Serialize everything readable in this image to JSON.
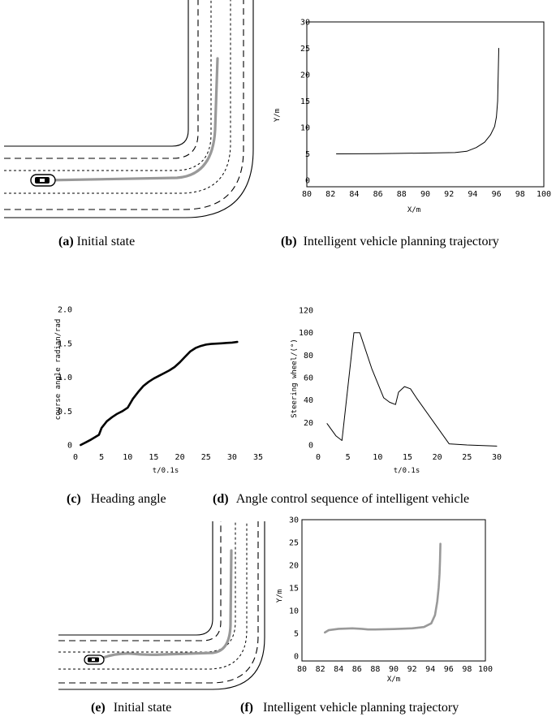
{
  "captions": {
    "a": {
      "letter": "(a)",
      "text": "Initial state"
    },
    "b": {
      "letter": "(b)",
      "text": "Intelligent vehicle planning trajectory"
    },
    "c": {
      "letter": "(c)",
      "text": "Heading angle"
    },
    "d": {
      "letter": "(d)",
      "text": "Angle control sequence of intelligent vehicle"
    },
    "e": {
      "letter": "(e)",
      "text": "Initial state"
    },
    "f": {
      "letter": "(f)",
      "text": "Intelligent vehicle planning trajectory"
    }
  },
  "chart_data": [
    {
      "id": "b",
      "type": "line",
      "title": "",
      "xlabel": "X/m",
      "ylabel": "Y/m",
      "xlim": [
        80,
        100
      ],
      "ylim": [
        0,
        30
      ],
      "xticks": [
        80,
        82,
        84,
        86,
        88,
        90,
        92,
        94,
        96,
        98,
        100
      ],
      "yticks": [
        0,
        5,
        10,
        15,
        20,
        25,
        30
      ],
      "color": "#000000",
      "series": [
        {
          "x": [
            82.5,
            86,
            90,
            92.5,
            93.5,
            94.3,
            95.0,
            95.5,
            95.85,
            96.0,
            96.1,
            96.15,
            96.2
          ],
          "y": [
            5.0,
            5.05,
            5.15,
            5.25,
            5.5,
            6.2,
            7.2,
            8.6,
            10.2,
            12.0,
            15.0,
            20.0,
            25.0
          ]
        }
      ],
      "grid": false
    },
    {
      "id": "c",
      "type": "line",
      "title": "",
      "xlabel": "t/0.1s",
      "ylabel": "course angle radian/rad",
      "xlim": [
        0,
        35
      ],
      "ylim": [
        0,
        2.0
      ],
      "xticks": [
        0,
        5,
        10,
        15,
        20,
        25,
        30,
        35
      ],
      "yticks": [
        0,
        0.5,
        1.0,
        1.5,
        2.0
      ],
      "color": "#000000",
      "series": [
        {
          "x": [
            1,
            2,
            3,
            4.5,
            5,
            6,
            7,
            8,
            9,
            10,
            11,
            12,
            13,
            14,
            15,
            16,
            17,
            18,
            19,
            20,
            21,
            22,
            23,
            24,
            25,
            26,
            27,
            28,
            29,
            30,
            31
          ],
          "y": [
            0.0,
            0.04,
            0.08,
            0.15,
            0.25,
            0.35,
            0.41,
            0.46,
            0.5,
            0.55,
            0.68,
            0.78,
            0.87,
            0.93,
            0.98,
            1.02,
            1.06,
            1.1,
            1.15,
            1.22,
            1.3,
            1.38,
            1.43,
            1.46,
            1.48,
            1.49,
            1.495,
            1.5,
            1.505,
            1.51,
            1.52
          ]
        }
      ],
      "grid": false
    },
    {
      "id": "d",
      "type": "line",
      "title": "",
      "xlabel": "t/0.1s",
      "ylabel": "Steering wheel/(°)",
      "xlim": [
        0,
        30
      ],
      "ylim": [
        0,
        120
      ],
      "xticks": [
        0,
        5,
        10,
        15,
        20,
        25,
        30
      ],
      "yticks": [
        0,
        20,
        40,
        60,
        80,
        100,
        120
      ],
      "color": "#000000",
      "series": [
        {
          "x": [
            1.5,
            3,
            4,
            6,
            7,
            9,
            11,
            12,
            13,
            13.5,
            14.5,
            15.5,
            16.5,
            22,
            25,
            30
          ],
          "y": [
            19,
            8,
            4,
            100,
            100,
            68,
            42,
            38,
            36,
            47,
            52,
            50,
            42,
            1,
            0,
            -1
          ]
        }
      ],
      "grid": false
    },
    {
      "id": "f",
      "type": "line",
      "title": "",
      "xlabel": "X/m",
      "ylabel": "Y/m",
      "xlim": [
        80,
        100
      ],
      "ylim": [
        0,
        30
      ],
      "xticks": [
        80,
        82,
        84,
        86,
        88,
        90,
        92,
        94,
        96,
        98,
        100
      ],
      "yticks": [
        0,
        5,
        10,
        15,
        20,
        25,
        30
      ],
      "color": "#999999",
      "series": [
        {
          "x": [
            82.5,
            82.9,
            84,
            85.5,
            86.5,
            87.2,
            88,
            90,
            92,
            93.3,
            94.1,
            94.5,
            94.75,
            94.9,
            95.0,
            95.05,
            95.1
          ],
          "y": [
            5.2,
            5.7,
            6.0,
            6.1,
            6.0,
            5.85,
            5.85,
            5.95,
            6.1,
            6.4,
            7.2,
            9.0,
            12.0,
            15.0,
            18.0,
            21.0,
            24.7
          ]
        }
      ],
      "grid": false
    }
  ]
}
